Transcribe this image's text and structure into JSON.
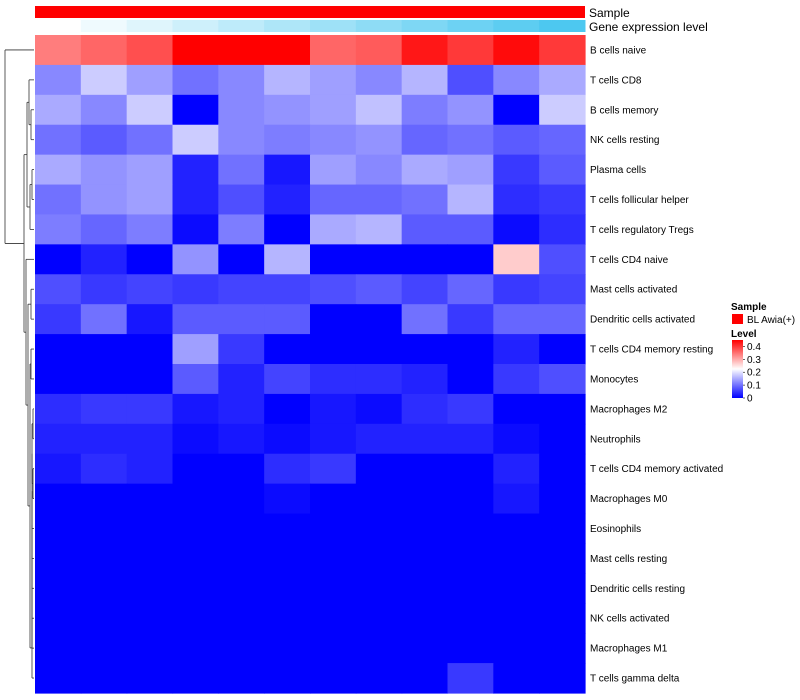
{
  "chart_data": {
    "type": "heatmap",
    "title": "",
    "xlabel": "",
    "ylabel": "",
    "annotation_tracks": [
      {
        "name": "Sample",
        "color": "#ff0000"
      },
      {
        "name": "Gene expression level",
        "colors_low_to_high": [
          "#ffffff",
          "#4dc8f0"
        ]
      }
    ],
    "rows": [
      "B cells naive",
      "T cells CD8",
      "B cells memory",
      "NK cells resting",
      "Plasma cells",
      "T cells follicular helper",
      "T cells regulatory  Tregs",
      "T cells CD4 naive",
      "Mast cells activated",
      "Dendritic cells activated",
      "T cells CD4 memory resting",
      "Monocytes",
      "Macrophages M2",
      "Neutrophils",
      "T cells CD4 memory activated",
      "Macrophages M0",
      "Eosinophils",
      "Mast cells resting",
      "Dendritic cells resting",
      "NK cells activated",
      "Macrophages M1",
      "T cells gamma delta"
    ],
    "n_columns": 12,
    "values": [
      [
        0.34,
        0.36,
        0.38,
        0.45,
        0.45,
        0.45,
        0.36,
        0.37,
        0.43,
        0.4,
        0.44,
        0.4
      ],
      [
        0.12,
        0.18,
        0.14,
        0.1,
        0.12,
        0.16,
        0.14,
        0.12,
        0.16,
        0.07,
        0.12,
        0.15
      ],
      [
        0.15,
        0.12,
        0.18,
        0.0,
        0.12,
        0.13,
        0.14,
        0.17,
        0.11,
        0.13,
        0.0,
        0.18
      ],
      [
        0.1,
        0.08,
        0.1,
        0.18,
        0.12,
        0.11,
        0.12,
        0.13,
        0.09,
        0.1,
        0.08,
        0.09
      ],
      [
        0.15,
        0.13,
        0.14,
        0.03,
        0.1,
        0.02,
        0.14,
        0.12,
        0.15,
        0.14,
        0.05,
        0.08
      ],
      [
        0.1,
        0.13,
        0.14,
        0.03,
        0.07,
        0.03,
        0.09,
        0.09,
        0.1,
        0.16,
        0.04,
        0.05
      ],
      [
        0.11,
        0.09,
        0.11,
        0.01,
        0.11,
        0.0,
        0.15,
        0.16,
        0.08,
        0.08,
        0.01,
        0.04
      ],
      [
        0.0,
        0.03,
        0.0,
        0.13,
        0.0,
        0.16,
        0.0,
        0.0,
        0.0,
        0.0,
        0.27,
        0.07
      ],
      [
        0.07,
        0.05,
        0.06,
        0.05,
        0.06,
        0.06,
        0.07,
        0.08,
        0.06,
        0.09,
        0.05,
        0.06
      ],
      [
        0.05,
        0.1,
        0.02,
        0.08,
        0.08,
        0.08,
        0.0,
        0.0,
        0.1,
        0.05,
        0.09,
        0.09
      ],
      [
        0.0,
        0.0,
        0.0,
        0.14,
        0.05,
        0.0,
        0.0,
        0.0,
        0.0,
        0.0,
        0.03,
        0.0
      ],
      [
        0.0,
        0.0,
        0.0,
        0.08,
        0.03,
        0.06,
        0.04,
        0.04,
        0.03,
        0.0,
        0.05,
        0.07
      ],
      [
        0.04,
        0.05,
        0.05,
        0.02,
        0.03,
        0.0,
        0.02,
        0.01,
        0.04,
        0.05,
        0.0,
        0.0
      ],
      [
        0.03,
        0.03,
        0.03,
        0.01,
        0.02,
        0.01,
        0.02,
        0.03,
        0.03,
        0.03,
        0.01,
        0.0
      ],
      [
        0.02,
        0.04,
        0.03,
        0.0,
        0.0,
        0.04,
        0.05,
        0.0,
        0.0,
        0.0,
        0.03,
        0.0
      ],
      [
        0.0,
        0.0,
        0.0,
        0.0,
        0.0,
        0.01,
        0.0,
        0.0,
        0.0,
        0.0,
        0.02,
        0.0
      ],
      [
        0.0,
        0.0,
        0.0,
        0.0,
        0.0,
        0.0,
        0.0,
        0.0,
        0.0,
        0.0,
        0.0,
        0.0
      ],
      [
        0.0,
        0.0,
        0.0,
        0.0,
        0.0,
        0.0,
        0.0,
        0.0,
        0.0,
        0.0,
        0.0,
        0.0
      ],
      [
        0.0,
        0.0,
        0.0,
        0.0,
        0.0,
        0.0,
        0.0,
        0.0,
        0.0,
        0.0,
        0.0,
        0.0
      ],
      [
        0.0,
        0.0,
        0.0,
        0.0,
        0.0,
        0.0,
        0.0,
        0.0,
        0.0,
        0.0,
        0.0,
        0.0
      ],
      [
        0.0,
        0.0,
        0.0,
        0.0,
        0.0,
        0.0,
        0.0,
        0.0,
        0.0,
        0.0,
        0.0,
        0.0
      ],
      [
        0.0,
        0.0,
        0.0,
        0.0,
        0.0,
        0.0,
        0.0,
        0.0,
        0.0,
        0.05,
        0.0,
        0.0
      ]
    ],
    "color_scale": {
      "low": "#0000ff",
      "mid": "#ffffff",
      "high": "#ff0000",
      "midpoint": 0.225,
      "range": [
        0,
        0.45
      ]
    },
    "legend": {
      "placement": "right",
      "sample": {
        "title": "Sample",
        "entries": [
          {
            "label": "BL Awia(+)",
            "color": "#ff0000"
          }
        ]
      },
      "level": {
        "title": "Level",
        "ticks": [
          "0.4",
          "0.3",
          "0.2",
          "0.1",
          "0"
        ],
        "tick_values": [
          0.4,
          0.3,
          0.2,
          0.1,
          0
        ]
      }
    },
    "dendrogram": "rows",
    "grid": false
  }
}
